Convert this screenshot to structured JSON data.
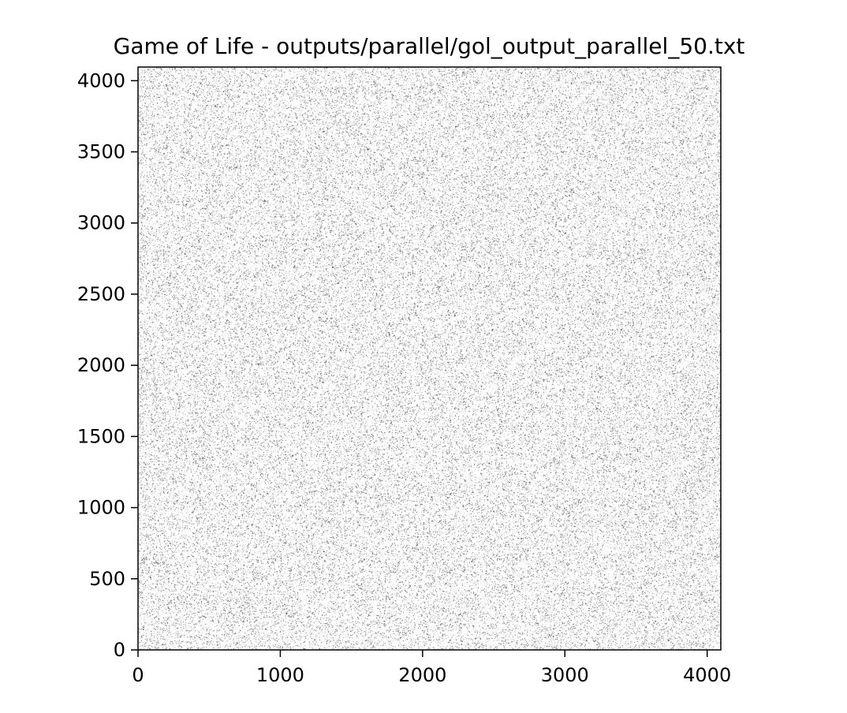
{
  "chart_data": {
    "type": "heatmap",
    "title": "Game of Life - outputs/parallel/gol_output_parallel_50.txt",
    "xlabel": "",
    "ylabel": "",
    "xlim": [
      0,
      4096
    ],
    "ylim": [
      0,
      4096
    ],
    "x_ticks": [
      0,
      1000,
      2000,
      3000,
      4000
    ],
    "y_ticks": [
      0,
      500,
      1000,
      1500,
      2000,
      2500,
      3000,
      3500,
      4000
    ],
    "x_tick_labels": [
      "0",
      "1000",
      "2000",
      "3000",
      "4000"
    ],
    "y_tick_labels": [
      "0",
      "500",
      "1000",
      "1500",
      "2000",
      "2500",
      "3000",
      "3500",
      "4000"
    ],
    "grid": false,
    "cmap": "binary",
    "alive_color": "#000000",
    "dead_color": "#ffffff",
    "approx_alive_fraction": 0.15
  }
}
